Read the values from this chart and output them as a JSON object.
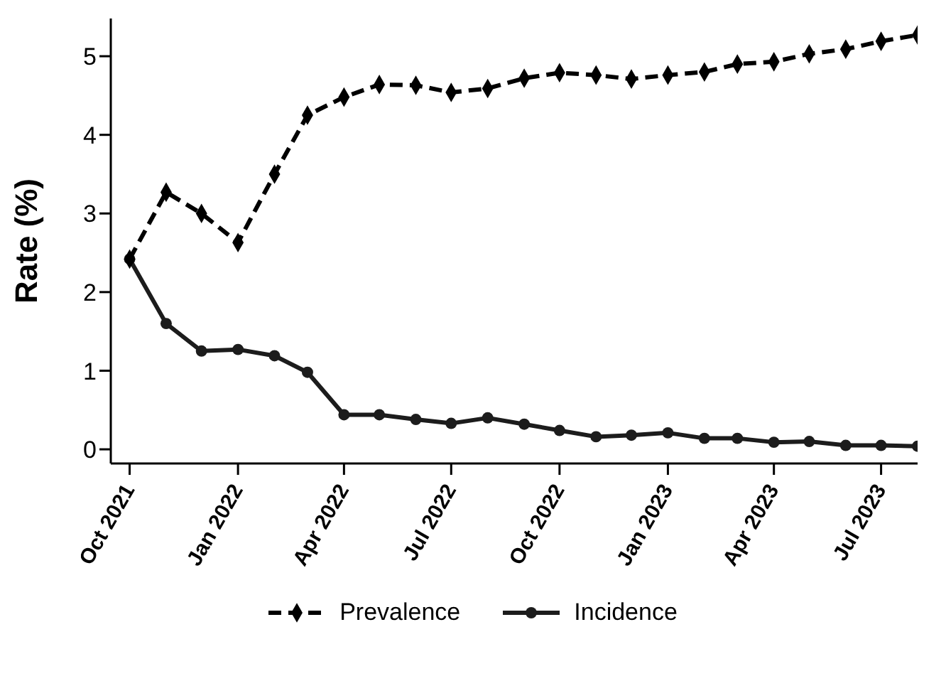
{
  "chart_data": {
    "type": "line",
    "ylabel": "Rate (%)",
    "x": [
      "2021-10",
      "2021-11",
      "2021-12",
      "2022-01",
      "2022-02",
      "2022-03",
      "2022-04",
      "2022-05",
      "2022-06",
      "2022-07",
      "2022-08",
      "2022-09",
      "2022-10",
      "2022-11",
      "2022-12",
      "2023-01",
      "2023-02",
      "2023-03",
      "2023-04",
      "2023-05",
      "2023-06",
      "2023-07",
      "2023-08"
    ],
    "series": [
      {
        "name": "Prevalence",
        "color": "#000000",
        "marker": "diamond",
        "line_style": "dashed",
        "values": [
          2.42,
          3.27,
          3.0,
          2.63,
          3.5,
          4.25,
          4.48,
          4.64,
          4.63,
          4.54,
          4.59,
          4.72,
          4.79,
          4.76,
          4.71,
          4.76,
          4.8,
          4.9,
          4.93,
          5.03,
          5.09,
          5.19,
          5.27
        ]
      },
      {
        "name": "Incidence",
        "color": "#1c1c1c",
        "marker": "circle",
        "line_style": "solid",
        "values": [
          2.42,
          1.6,
          1.25,
          1.27,
          1.19,
          0.98,
          0.44,
          0.44,
          0.38,
          0.33,
          0.4,
          0.32,
          0.24,
          0.16,
          0.18,
          0.21,
          0.14,
          0.14,
          0.09,
          0.1,
          0.05,
          0.05,
          0.04
        ]
      }
    ],
    "xlim": [
      "2021-09-15",
      "2023-08-01"
    ],
    "xticks": [
      {
        "value": "2021-10",
        "label": "Oct 2021"
      },
      {
        "value": "2022-01",
        "label": "Jan 2022"
      },
      {
        "value": "2022-04",
        "label": "Apr 2022"
      },
      {
        "value": "2022-07",
        "label": "Jul 2022"
      },
      {
        "value": "2022-10",
        "label": "Oct 2022"
      },
      {
        "value": "2023-01",
        "label": "Jan 2023"
      },
      {
        "value": "2023-04",
        "label": "Apr 2023"
      },
      {
        "value": "2023-07",
        "label": "Jul 2023"
      }
    ],
    "ylim": [
      -0.18,
      5.48
    ],
    "yticks": [
      0,
      1,
      2,
      3,
      4,
      5
    ],
    "grid": false,
    "legend": "bottom"
  }
}
